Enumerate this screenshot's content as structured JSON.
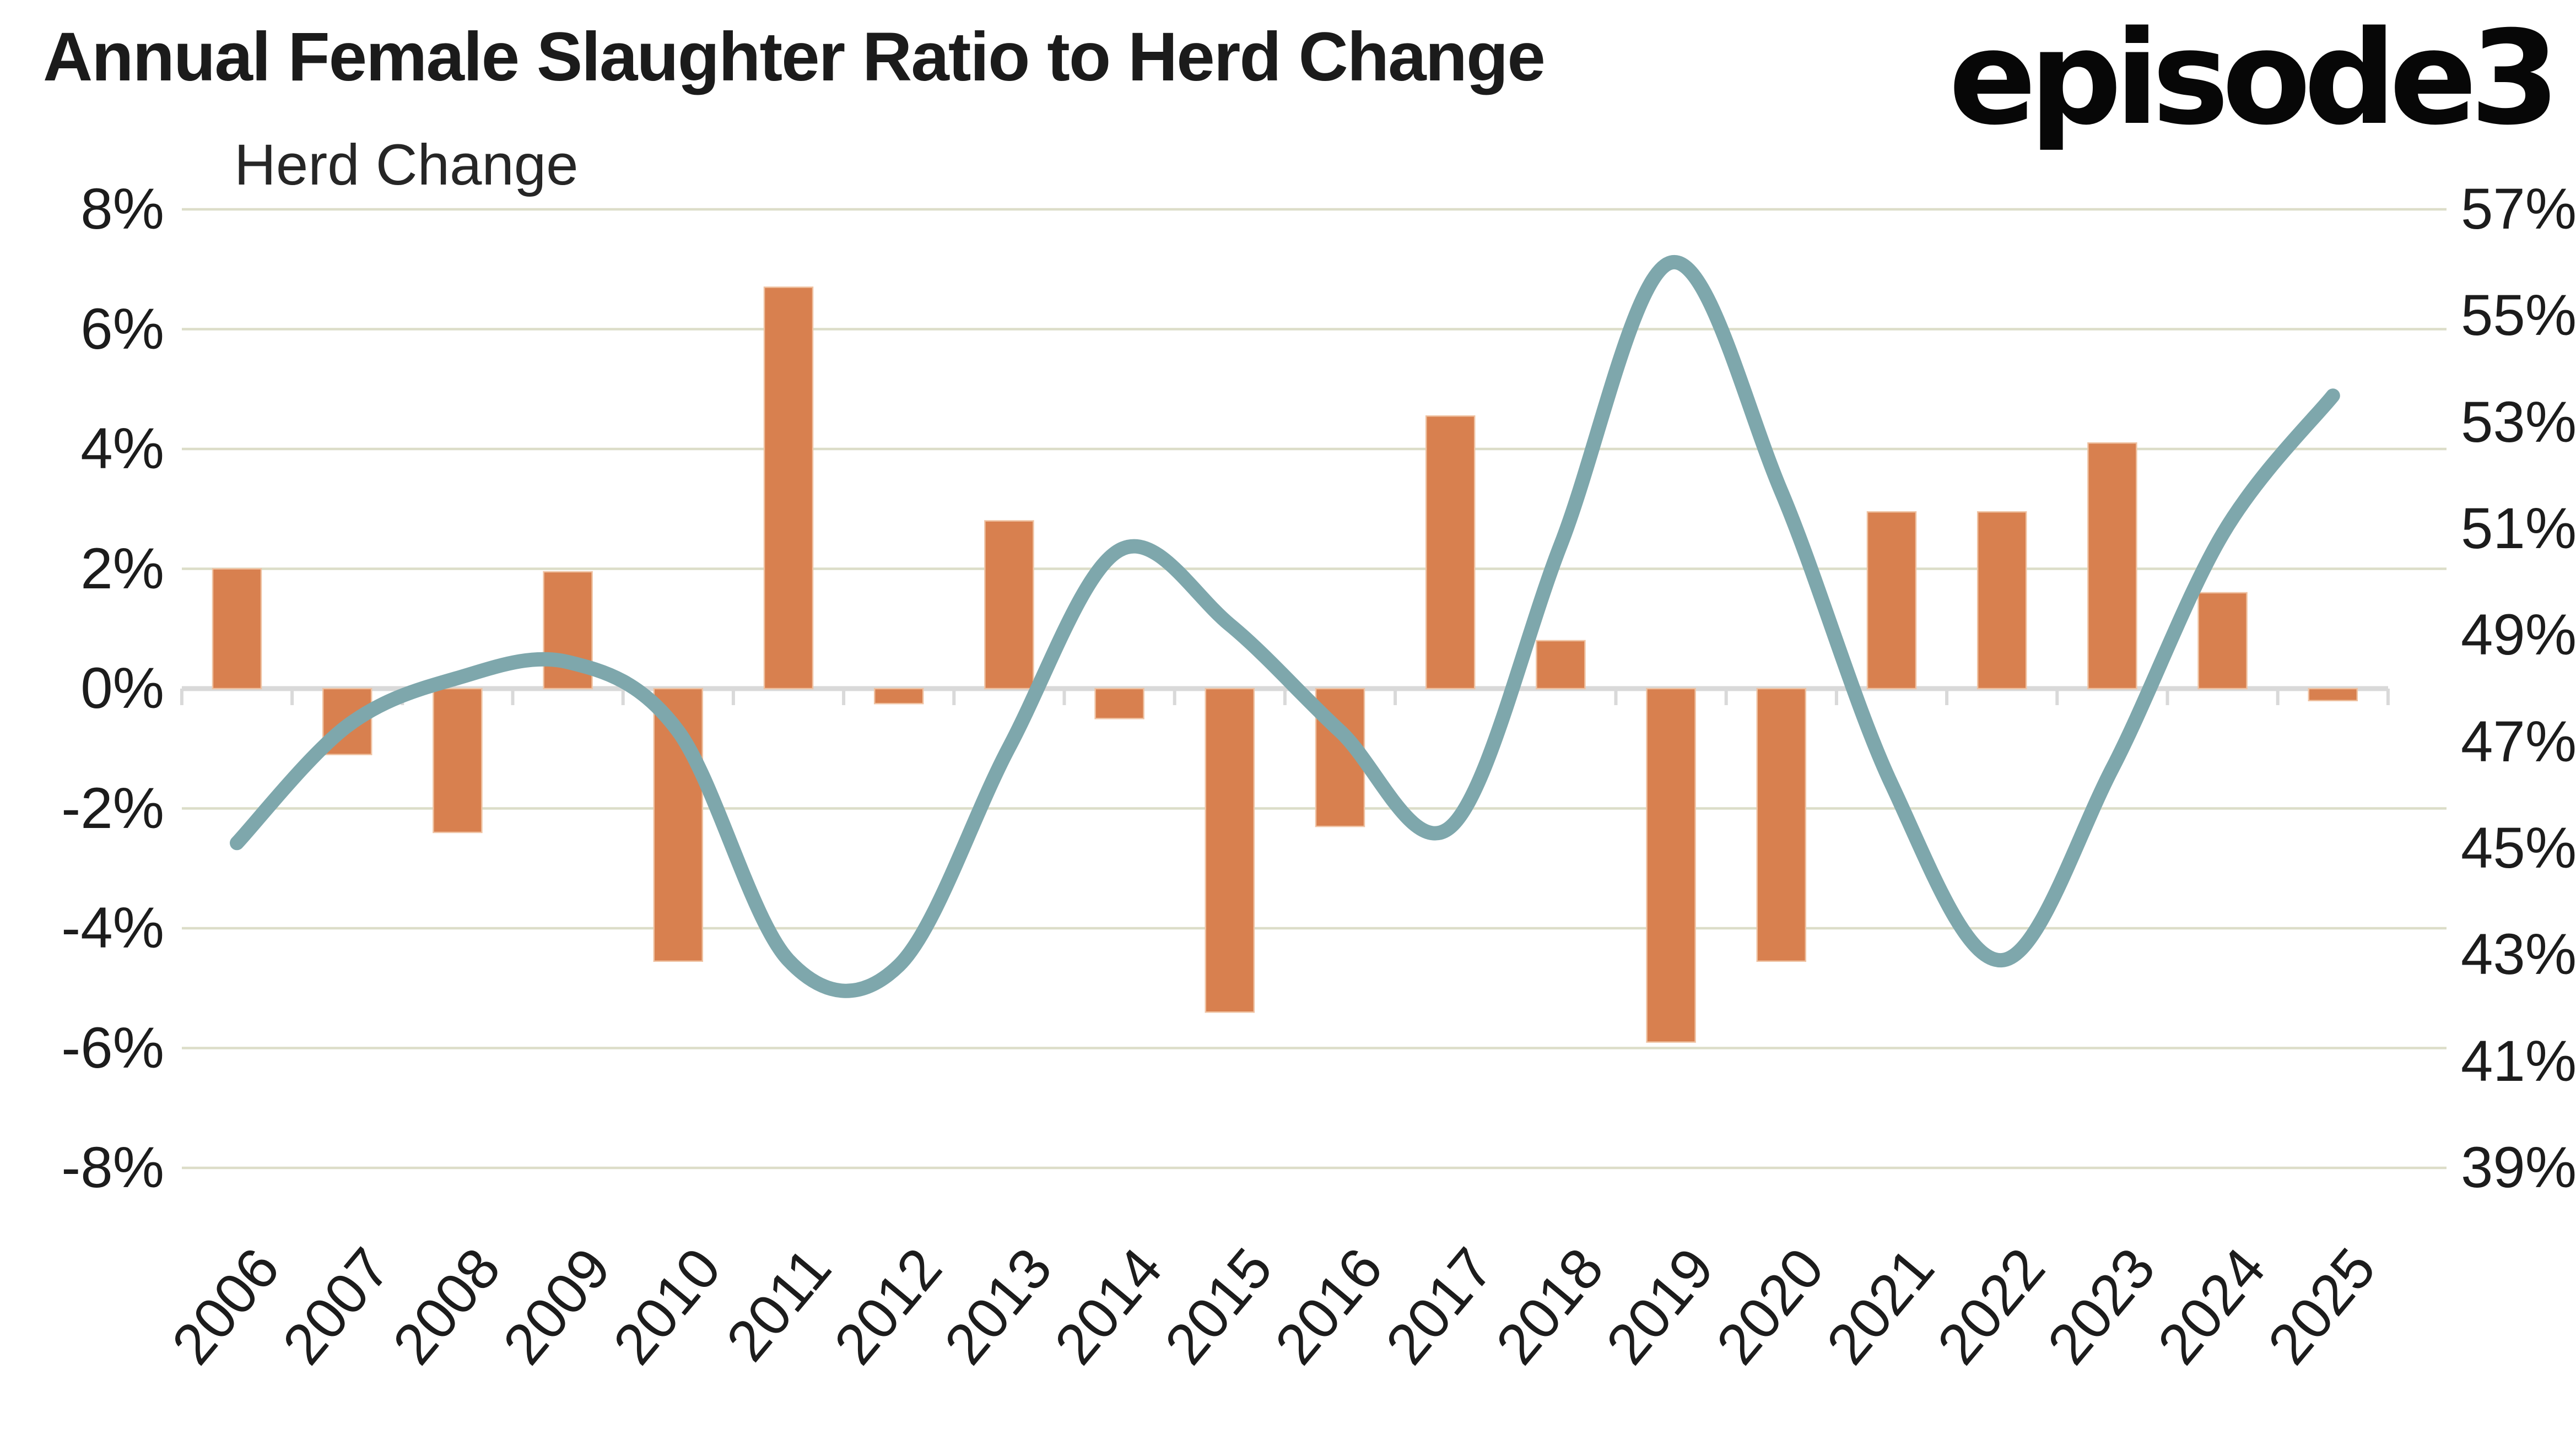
{
  "header": {
    "title": "Annual Female Slaughter Ratio to Herd Change",
    "logo_text": "episode3"
  },
  "chart_data": {
    "type": "bar+line",
    "title": "Annual Female Slaughter Ratio to Herd Change",
    "categories": [
      "2006",
      "2007",
      "2008",
      "2009",
      "2010",
      "2011",
      "2012",
      "2013",
      "2014",
      "2015",
      "2016",
      "2017",
      "2018",
      "2019",
      "2020",
      "2021",
      "2022",
      "2023",
      "2024",
      "2025"
    ],
    "series": [
      {
        "name": "Herd Change",
        "type": "bar",
        "axis": "left",
        "color": "#D8804F",
        "edge_color": "#EFC2A2",
        "values": [
          2.0,
          -1.1,
          -2.4,
          1.95,
          -4.55,
          6.7,
          -0.25,
          2.8,
          -0.5,
          -5.4,
          -2.3,
          4.55,
          0.8,
          -5.9,
          -4.55,
          2.95,
          2.95,
          4.1,
          1.6,
          -0.2
        ]
      },
      {
        "name": "Female Slaughter Ratio",
        "type": "line",
        "axis": "right",
        "color": "#7EA7AC",
        "values": [
          45.1,
          47.3,
          48.2,
          48.5,
          47.2,
          42.9,
          42.8,
          46.9,
          50.6,
          49.2,
          47.2,
          45.4,
          50.7,
          56.0,
          51.7,
          46.2,
          42.9,
          46.5,
          50.9,
          53.5
        ]
      }
    ],
    "left_axis": {
      "title": "Herd Change",
      "min": -8,
      "max": 8,
      "ticks": [
        {
          "label": "8%",
          "value": 8
        },
        {
          "label": "6%",
          "value": 6
        },
        {
          "label": "4%",
          "value": 4
        },
        {
          "label": "2%",
          "value": 2
        },
        {
          "label": "0%",
          "value": 0
        },
        {
          "label": "-2%",
          "value": -2
        },
        {
          "label": "-4%",
          "value": -4
        },
        {
          "label": "-6%",
          "value": -6
        },
        {
          "label": "-8%",
          "value": -8
        }
      ]
    },
    "right_axis": {
      "min": 39,
      "max": 57,
      "ticks": [
        {
          "label": "57%",
          "value": 57
        },
        {
          "label": "55%",
          "value": 55
        },
        {
          "label": "53%",
          "value": 53
        },
        {
          "label": "51%",
          "value": 51
        },
        {
          "label": "49%",
          "value": 49
        },
        {
          "label": "47%",
          "value": 47
        },
        {
          "label": "45%",
          "value": 45
        },
        {
          "label": "43%",
          "value": 43
        },
        {
          "label": "41%",
          "value": 41
        },
        {
          "label": "39%",
          "value": 39
        }
      ]
    },
    "grid": true,
    "legend": "none",
    "colors": {
      "grid": "#DCDDC8",
      "axis_zero_line": "#D9D9D9",
      "text": "#1C1C1C",
      "background": "#FFFFFF"
    }
  }
}
